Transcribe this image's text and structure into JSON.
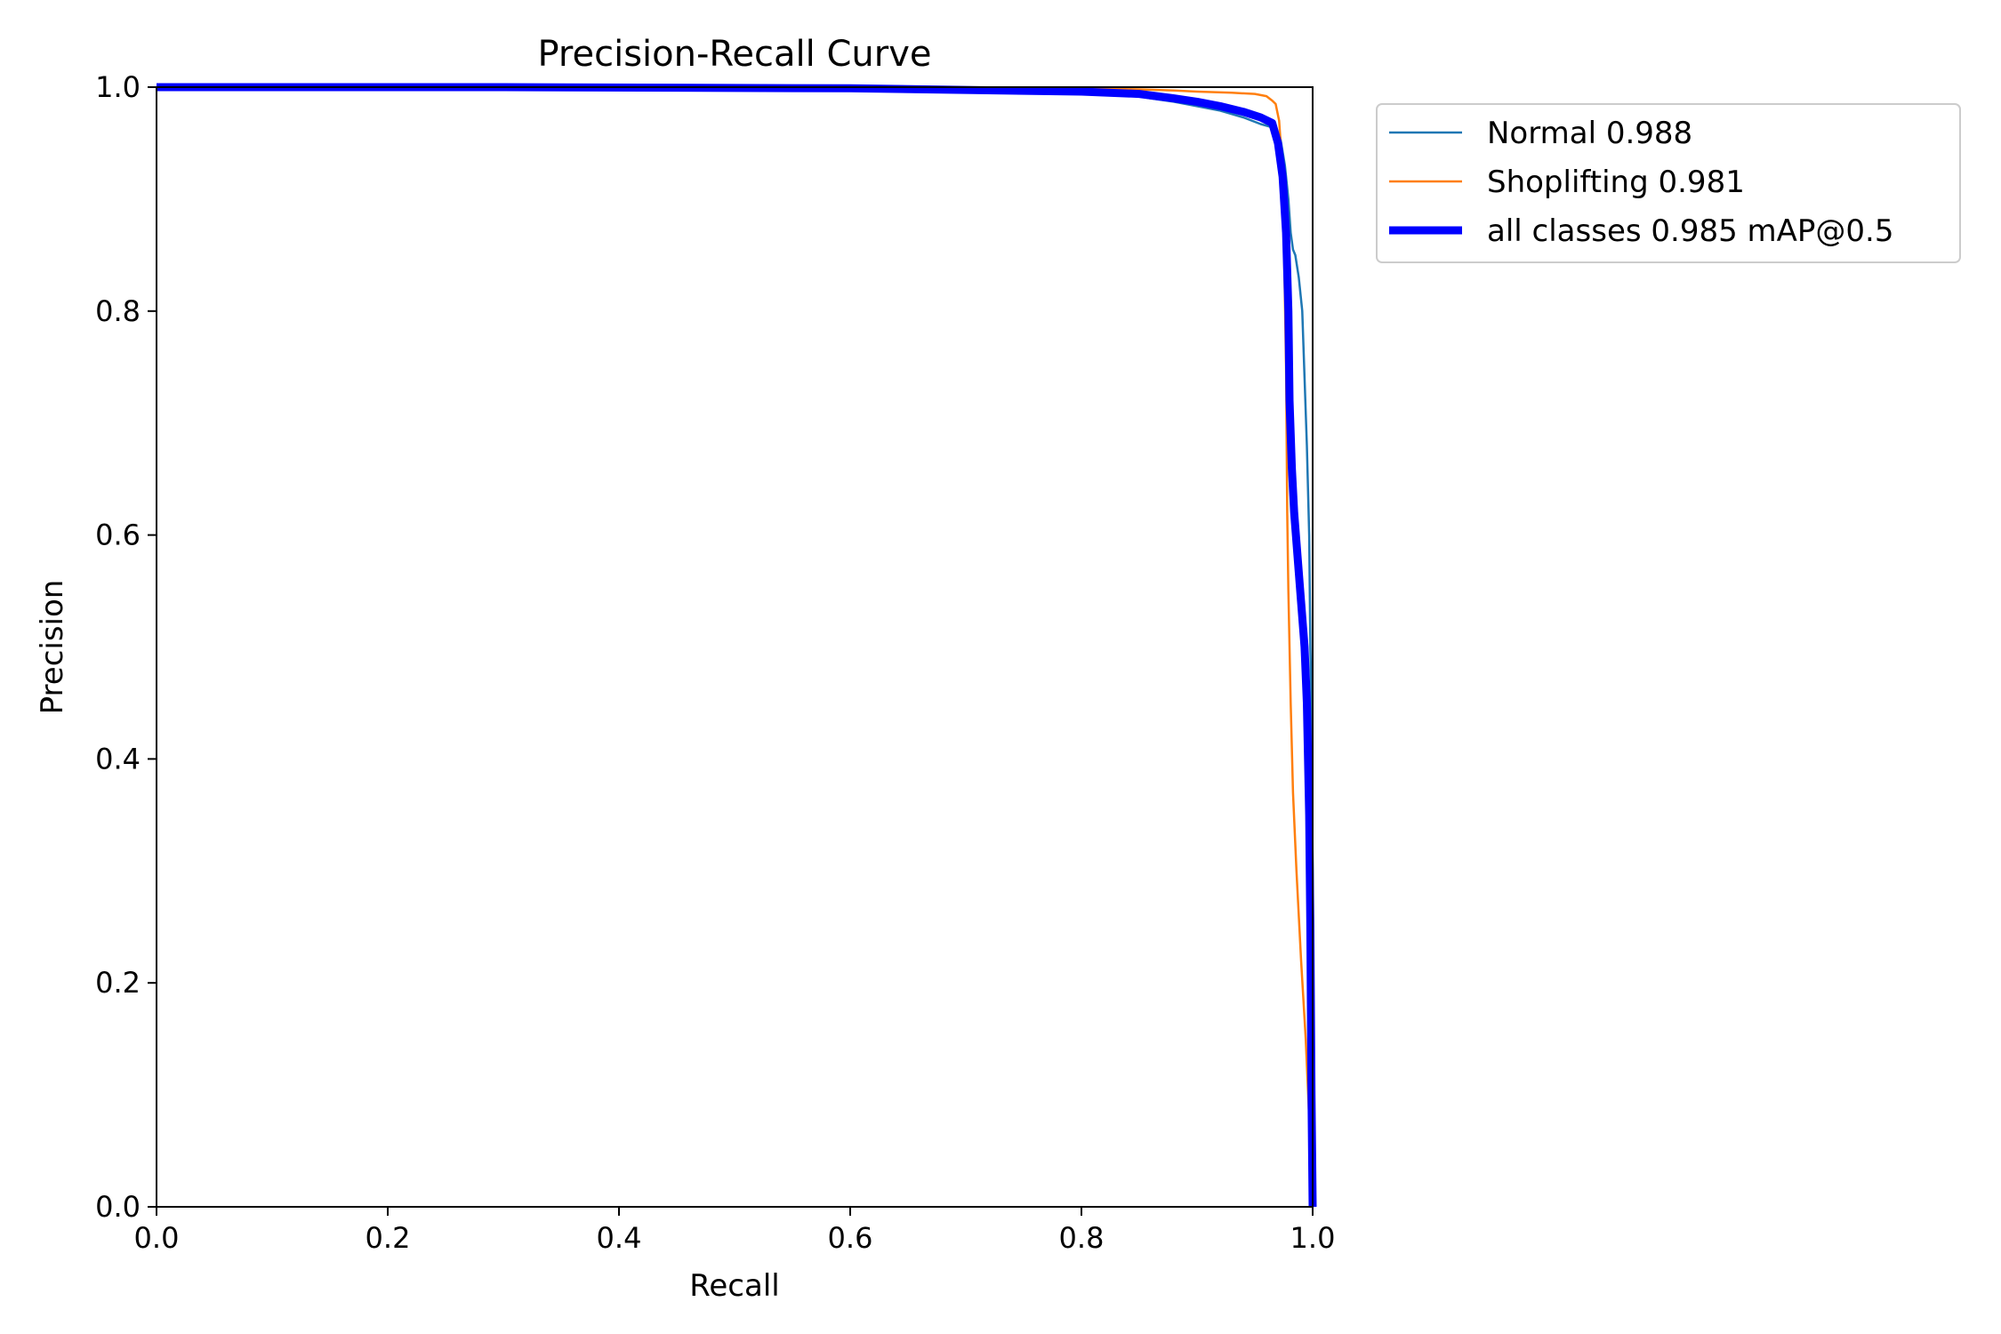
{
  "chart_data": {
    "type": "line",
    "title": "Precision-Recall Curve",
    "xlabel": "Recall",
    "ylabel": "Precision",
    "xlim": [
      0,
      1
    ],
    "ylim": [
      0,
      1
    ],
    "xticks": [
      0.0,
      0.2,
      0.4,
      0.6,
      0.8,
      1.0
    ],
    "yticks": [
      0.0,
      0.2,
      0.4,
      0.6,
      0.8,
      1.0
    ],
    "xtick_labels": [
      "0.0",
      "0.2",
      "0.4",
      "0.6",
      "0.8",
      "1.0"
    ],
    "ytick_labels": [
      "0.0",
      "0.2",
      "0.4",
      "0.6",
      "0.8",
      "1.0"
    ],
    "grid": false,
    "legend_position": "outside-upper-right",
    "series": [
      {
        "name": "Normal 0.988",
        "color": "#1f77b4",
        "x": [
          0.0,
          0.3,
          0.6,
          0.75,
          0.83,
          0.86,
          0.88,
          0.9,
          0.92,
          0.94,
          0.955,
          0.962,
          0.968,
          0.972,
          0.976,
          0.979,
          0.981,
          0.983,
          0.985,
          0.988,
          0.991,
          0.993,
          0.995,
          0.997,
          0.998,
          0.999,
          1.0,
          1.0
        ],
        "y": [
          1.0,
          1.0,
          0.999,
          0.997,
          0.995,
          0.99,
          0.987,
          0.983,
          0.979,
          0.973,
          0.967,
          0.965,
          0.963,
          0.955,
          0.93,
          0.9,
          0.87,
          0.855,
          0.85,
          0.83,
          0.8,
          0.74,
          0.68,
          0.6,
          0.5,
          0.45,
          0.3,
          0.0
        ]
      },
      {
        "name": "Shoplifting 0.981",
        "color": "#ff7f0e",
        "x": [
          0.0,
          0.3,
          0.6,
          0.8,
          0.85,
          0.88,
          0.9,
          0.93,
          0.95,
          0.96,
          0.965,
          0.968,
          0.971,
          0.973,
          0.975,
          0.977,
          0.978,
          0.979,
          0.98,
          0.981,
          0.983,
          0.986,
          0.99,
          0.994,
          0.997,
          0.999,
          1.0
        ],
        "y": [
          1.0,
          1.0,
          1.0,
          0.999,
          0.998,
          0.997,
          0.996,
          0.995,
          0.994,
          0.992,
          0.988,
          0.985,
          0.97,
          0.94,
          0.87,
          0.75,
          0.62,
          0.55,
          0.5,
          0.45,
          0.37,
          0.3,
          0.22,
          0.15,
          0.08,
          0.03,
          0.0
        ]
      },
      {
        "name": "all classes 0.985 mAP@0.5",
        "color": "#0000ff",
        "x": [
          0.0,
          0.3,
          0.6,
          0.8,
          0.85,
          0.88,
          0.9,
          0.92,
          0.94,
          0.955,
          0.965,
          0.97,
          0.974,
          0.977,
          0.979,
          0.98,
          0.981,
          0.982,
          0.984,
          0.987,
          0.99,
          0.993,
          0.995,
          0.997,
          0.998,
          0.999,
          1.0
        ],
        "y": [
          1.0,
          1.0,
          0.999,
          0.996,
          0.994,
          0.99,
          0.987,
          0.983,
          0.978,
          0.973,
          0.968,
          0.95,
          0.92,
          0.87,
          0.8,
          0.72,
          0.69,
          0.66,
          0.62,
          0.58,
          0.54,
          0.5,
          0.45,
          0.35,
          0.25,
          0.1,
          0.0
        ]
      }
    ]
  }
}
